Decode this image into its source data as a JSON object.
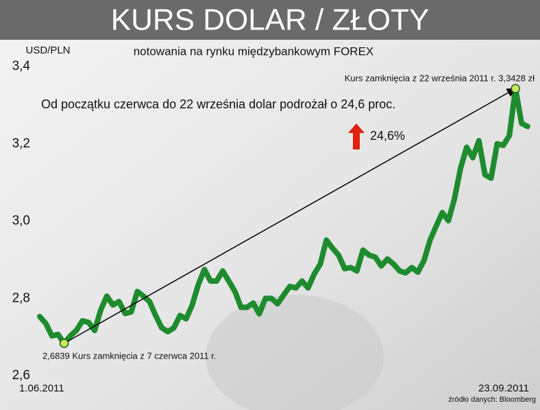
{
  "chart_data": {
    "type": "line",
    "title": "KURS DOLAR / ZŁOTY",
    "subtitle": "notowania na rynku międzybankowym FOREX",
    "y_label": "USD/PLN",
    "annotations": [
      "Kurs zamknięcia z 22 września 2011 r. 3,3428 zł",
      "Od początku czerwca do 22 września dolar podrożał o 24,6 proc.",
      "24,6%",
      "2,6839 Kurs zamknięcia z 7 czerwca 2011 r."
    ],
    "source": "źródło danych: Bloomberg",
    "categories": [
      "1.06.2011",
      null,
      null,
      null,
      null,
      null,
      null,
      null,
      null,
      null,
      null,
      null,
      null,
      null,
      null,
      null,
      null,
      null,
      null,
      null,
      null,
      null,
      null,
      null,
      null,
      null,
      null,
      null,
      null,
      null,
      null,
      null,
      null,
      null,
      null,
      null,
      null,
      null,
      null,
      null,
      null,
      null,
      null,
      null,
      null,
      null,
      null,
      null,
      null,
      null,
      null,
      null,
      null,
      null,
      null,
      null,
      null,
      null,
      null,
      null,
      null,
      null,
      null,
      null,
      null,
      null,
      null,
      null,
      null,
      null,
      null,
      null,
      null,
      null,
      null,
      null,
      null,
      null,
      null,
      null,
      "23.09.2011"
    ],
    "series": [
      {
        "name": "USD/PLN",
        "color": "#1e8c2e",
        "values": [
          2.753,
          2.735,
          2.703,
          2.707,
          2.6839,
          2.703,
          2.717,
          2.742,
          2.738,
          2.717,
          2.77,
          2.806,
          2.783,
          2.792,
          2.761,
          2.765,
          2.818,
          2.806,
          2.792,
          2.756,
          2.724,
          2.714,
          2.724,
          2.756,
          2.747,
          2.783,
          2.836,
          2.875,
          2.845,
          2.845,
          2.871,
          2.845,
          2.818,
          2.777,
          2.777,
          2.788,
          2.76,
          2.8,
          2.8,
          2.786,
          2.809,
          2.831,
          2.827,
          2.845,
          2.827,
          2.863,
          2.889,
          2.951,
          2.93,
          2.912,
          2.877,
          2.88,
          2.871,
          2.925,
          2.912,
          2.907,
          2.884,
          2.902,
          2.889,
          2.871,
          2.866,
          2.88,
          2.868,
          2.898,
          2.951,
          2.987,
          3.022,
          3.001,
          3.058,
          3.137,
          3.191,
          3.164,
          3.208,
          3.12,
          3.111,
          3.2,
          3.196,
          3.221,
          3.3428,
          3.253,
          3.245
        ]
      }
    ],
    "ylim": [
      2.6,
      3.4
    ],
    "yticks": [
      {
        "value": 2.6,
        "label": "2,6"
      },
      {
        "value": 2.8,
        "label": "2,8"
      },
      {
        "value": 3.0,
        "label": "3,0"
      },
      {
        "value": 3.2,
        "label": "3,2"
      },
      {
        "value": 3.4,
        "label": "3,4"
      }
    ]
  }
}
